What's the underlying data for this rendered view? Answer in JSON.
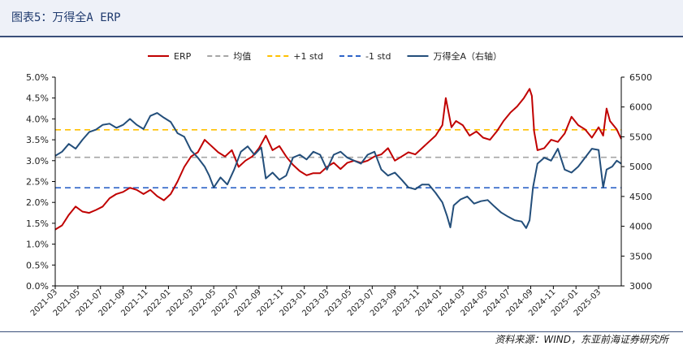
{
  "header": {
    "title": "图表5：万得全A ERP"
  },
  "source": "资料来源：WIND，东亚前海证券研究所",
  "colors": {
    "erp": "#c00000",
    "mean": "#a6a6a6",
    "plus_std": "#ffc000",
    "minus_std": "#2e64c8",
    "index": "#234e7a",
    "axis": "#000000"
  },
  "chart_data": {
    "type": "line",
    "title": "",
    "legend_position": "top-center",
    "legend": [
      {
        "key": "erp",
        "label": "ERP",
        "style": "solid"
      },
      {
        "key": "mean",
        "label": "均值",
        "style": "dashed"
      },
      {
        "key": "plus_std",
        "label": "+1 std",
        "style": "dashed"
      },
      {
        "key": "minus_std",
        "label": "-1 std",
        "style": "dashed"
      },
      {
        "key": "index",
        "label": "万得全A（右轴）",
        "style": "solid"
      }
    ],
    "x_ticks": [
      "2021-03",
      "2021-05",
      "2021-07",
      "2021-09",
      "2021-11",
      "2022-01",
      "2022-03",
      "2022-05",
      "2022-07",
      "2022-09",
      "2022-11",
      "2023-01",
      "2023-03",
      "2023-05",
      "2023-07",
      "2023-09",
      "2023-11",
      "2024-01",
      "2024-03",
      "2024-05",
      "2024-07",
      "2024-09",
      "2024-11",
      "2025-01",
      "2025-03"
    ],
    "x_range": [
      0,
      25
    ],
    "y_left": {
      "min": 0,
      "max": 5.0,
      "ticks": [
        "0.0%",
        "0.5%",
        "1.0%",
        "1.5%",
        "2.0%",
        "2.5%",
        "3.0%",
        "3.5%",
        "4.0%",
        "4.5%",
        "5.0%"
      ]
    },
    "y_right": {
      "min": 3000,
      "max": 6500,
      "ticks": [
        "3000",
        "3500",
        "4000",
        "4500",
        "5000",
        "5500",
        "6000",
        "6500"
      ]
    },
    "reference_lines": {
      "mean": 3.08,
      "plus_std": 3.74,
      "minus_std": 2.35
    },
    "series": [
      {
        "name": "ERP",
        "axis": "left",
        "points": [
          [
            0,
            1.35
          ],
          [
            0.3,
            1.45
          ],
          [
            0.6,
            1.7
          ],
          [
            0.9,
            1.9
          ],
          [
            1.2,
            1.78
          ],
          [
            1.5,
            1.75
          ],
          [
            1.8,
            1.82
          ],
          [
            2.1,
            1.9
          ],
          [
            2.4,
            2.1
          ],
          [
            2.7,
            2.2
          ],
          [
            3.0,
            2.25
          ],
          [
            3.3,
            2.35
          ],
          [
            3.6,
            2.3
          ],
          [
            3.9,
            2.2
          ],
          [
            4.2,
            2.3
          ],
          [
            4.5,
            2.15
          ],
          [
            4.8,
            2.05
          ],
          [
            5.1,
            2.2
          ],
          [
            5.4,
            2.5
          ],
          [
            5.7,
            2.85
          ],
          [
            6.0,
            3.1
          ],
          [
            6.3,
            3.2
          ],
          [
            6.6,
            3.5
          ],
          [
            6.9,
            3.35
          ],
          [
            7.2,
            3.2
          ],
          [
            7.5,
            3.1
          ],
          [
            7.8,
            3.25
          ],
          [
            8.1,
            2.85
          ],
          [
            8.4,
            3.0
          ],
          [
            8.7,
            3.1
          ],
          [
            9.0,
            3.3
          ],
          [
            9.3,
            3.6
          ],
          [
            9.6,
            3.25
          ],
          [
            9.9,
            3.35
          ],
          [
            10.2,
            3.1
          ],
          [
            10.5,
            2.9
          ],
          [
            10.8,
            2.75
          ],
          [
            11.1,
            2.65
          ],
          [
            11.4,
            2.7
          ],
          [
            11.7,
            2.7
          ],
          [
            12.0,
            2.85
          ],
          [
            12.3,
            2.95
          ],
          [
            12.6,
            2.8
          ],
          [
            12.9,
            2.95
          ],
          [
            13.2,
            3.0
          ],
          [
            13.5,
            2.95
          ],
          [
            13.8,
            3.0
          ],
          [
            14.1,
            3.1
          ],
          [
            14.4,
            3.15
          ],
          [
            14.7,
            3.3
          ],
          [
            15.0,
            3.0
          ],
          [
            15.3,
            3.1
          ],
          [
            15.6,
            3.2
          ],
          [
            15.9,
            3.15
          ],
          [
            16.2,
            3.3
          ],
          [
            16.5,
            3.45
          ],
          [
            16.8,
            3.6
          ],
          [
            17.1,
            3.85
          ],
          [
            17.25,
            4.5
          ],
          [
            17.5,
            3.8
          ],
          [
            17.7,
            3.95
          ],
          [
            18.0,
            3.85
          ],
          [
            18.3,
            3.6
          ],
          [
            18.6,
            3.7
          ],
          [
            18.9,
            3.55
          ],
          [
            19.2,
            3.5
          ],
          [
            19.5,
            3.7
          ],
          [
            19.8,
            3.95
          ],
          [
            20.1,
            4.15
          ],
          [
            20.4,
            4.3
          ],
          [
            20.7,
            4.5
          ],
          [
            20.95,
            4.72
          ],
          [
            21.05,
            4.55
          ],
          [
            21.15,
            3.7
          ],
          [
            21.3,
            3.25
          ],
          [
            21.6,
            3.3
          ],
          [
            21.9,
            3.5
          ],
          [
            22.2,
            3.45
          ],
          [
            22.5,
            3.65
          ],
          [
            22.8,
            4.05
          ],
          [
            23.1,
            3.85
          ],
          [
            23.4,
            3.75
          ],
          [
            23.7,
            3.55
          ],
          [
            24.0,
            3.8
          ],
          [
            24.2,
            3.6
          ],
          [
            24.35,
            4.25
          ],
          [
            24.5,
            3.95
          ],
          [
            24.8,
            3.75
          ],
          [
            25.0,
            3.52
          ]
        ]
      },
      {
        "name": "万得全A（右轴）",
        "axis": "right",
        "points": [
          [
            0,
            5180
          ],
          [
            0.3,
            5250
          ],
          [
            0.6,
            5380
          ],
          [
            0.9,
            5300
          ],
          [
            1.2,
            5450
          ],
          [
            1.5,
            5580
          ],
          [
            1.8,
            5620
          ],
          [
            2.1,
            5700
          ],
          [
            2.4,
            5720
          ],
          [
            2.7,
            5650
          ],
          [
            3.0,
            5700
          ],
          [
            3.3,
            5800
          ],
          [
            3.6,
            5700
          ],
          [
            3.9,
            5630
          ],
          [
            4.2,
            5850
          ],
          [
            4.5,
            5900
          ],
          [
            4.8,
            5820
          ],
          [
            5.1,
            5750
          ],
          [
            5.4,
            5560
          ],
          [
            5.7,
            5500
          ],
          [
            6.0,
            5270
          ],
          [
            6.3,
            5150
          ],
          [
            6.6,
            5000
          ],
          [
            6.8,
            4850
          ],
          [
            7.0,
            4650
          ],
          [
            7.3,
            4820
          ],
          [
            7.6,
            4700
          ],
          [
            7.9,
            4950
          ],
          [
            8.2,
            5250
          ],
          [
            8.5,
            5340
          ],
          [
            8.8,
            5200
          ],
          [
            9.1,
            5320
          ],
          [
            9.3,
            4800
          ],
          [
            9.6,
            4900
          ],
          [
            9.9,
            4780
          ],
          [
            10.2,
            4850
          ],
          [
            10.5,
            5150
          ],
          [
            10.8,
            5200
          ],
          [
            11.1,
            5120
          ],
          [
            11.4,
            5250
          ],
          [
            11.7,
            5200
          ],
          [
            12.0,
            4950
          ],
          [
            12.3,
            5200
          ],
          [
            12.6,
            5250
          ],
          [
            12.9,
            5150
          ],
          [
            13.2,
            5100
          ],
          [
            13.5,
            5050
          ],
          [
            13.8,
            5200
          ],
          [
            14.1,
            5250
          ],
          [
            14.4,
            4950
          ],
          [
            14.7,
            4850
          ],
          [
            15.0,
            4900
          ],
          [
            15.3,
            4780
          ],
          [
            15.6,
            4650
          ],
          [
            15.9,
            4620
          ],
          [
            16.2,
            4700
          ],
          [
            16.5,
            4700
          ],
          [
            16.8,
            4560
          ],
          [
            17.1,
            4400
          ],
          [
            17.3,
            4180
          ],
          [
            17.45,
            3980
          ],
          [
            17.6,
            4350
          ],
          [
            17.9,
            4450
          ],
          [
            18.2,
            4500
          ],
          [
            18.5,
            4380
          ],
          [
            18.8,
            4420
          ],
          [
            19.1,
            4440
          ],
          [
            19.4,
            4330
          ],
          [
            19.7,
            4230
          ],
          [
            20.0,
            4160
          ],
          [
            20.3,
            4100
          ],
          [
            20.6,
            4080
          ],
          [
            20.8,
            3970
          ],
          [
            20.95,
            4100
          ],
          [
            21.1,
            4650
          ],
          [
            21.3,
            5050
          ],
          [
            21.6,
            5150
          ],
          [
            21.9,
            5100
          ],
          [
            22.2,
            5300
          ],
          [
            22.5,
            4950
          ],
          [
            22.8,
            4900
          ],
          [
            23.1,
            5000
          ],
          [
            23.4,
            5150
          ],
          [
            23.7,
            5300
          ],
          [
            24.0,
            5280
          ],
          [
            24.2,
            4650
          ],
          [
            24.35,
            4950
          ],
          [
            24.6,
            5000
          ],
          [
            24.8,
            5100
          ],
          [
            25.0,
            5050
          ]
        ]
      }
    ]
  }
}
